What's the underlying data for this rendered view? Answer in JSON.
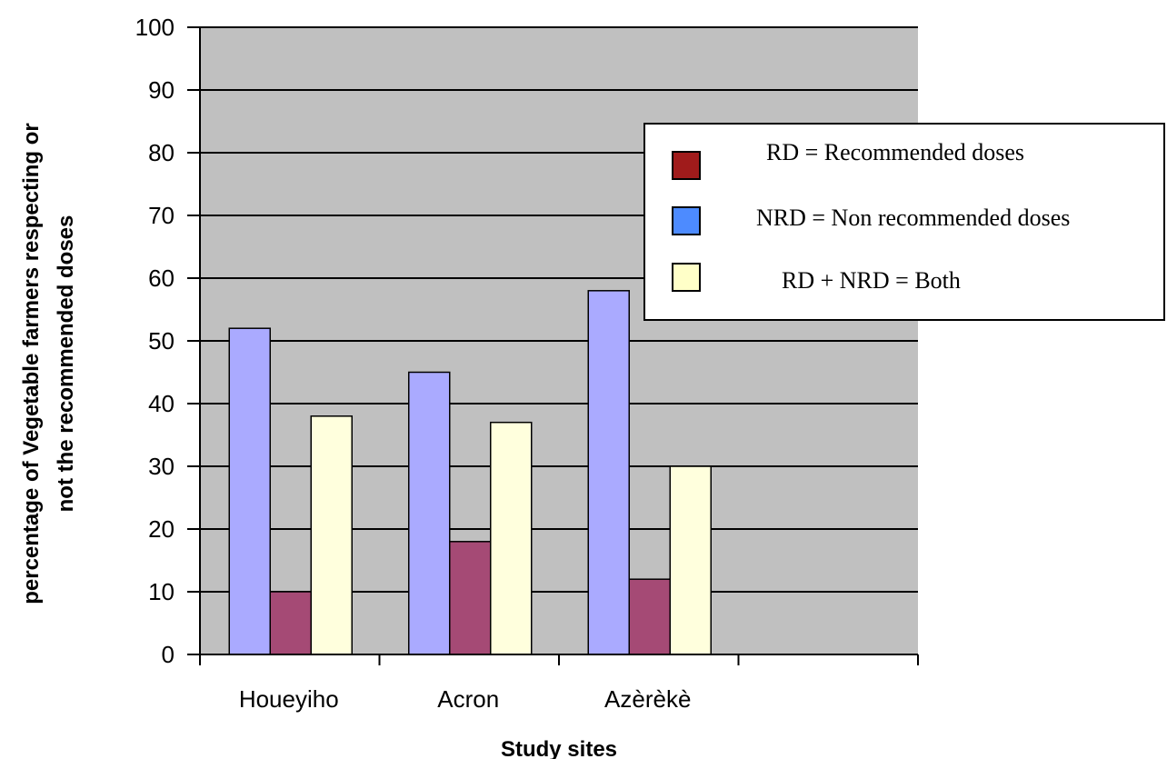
{
  "chart_data": {
    "type": "bar",
    "categories": [
      "Houeyiho",
      "Acron",
      "Azèrèkè",
      ""
    ],
    "series": [
      {
        "key": "NRD",
        "values": [
          52,
          45,
          58,
          null
        ],
        "color": "#aaaaff"
      },
      {
        "key": "RD",
        "values": [
          10,
          18,
          12,
          null
        ],
        "color": "#a54a75"
      },
      {
        "key": "RD + NRD",
        "values": [
          38,
          37,
          30,
          null
        ],
        "color": "#ffffdd"
      }
    ],
    "xlabel": "Study sites",
    "ylabel_line1": "percentage of Vegetable farmers respecting or",
    "ylabel_line2": "not the recommended doses",
    "ylim": [
      0,
      100
    ],
    "yticks": [
      "0",
      "10",
      "20",
      "30",
      "40",
      "50",
      "60",
      "70",
      "80",
      "90",
      "100"
    ],
    "grid": true,
    "plot_background": "#c0c0c0",
    "legend": {
      "position": "top-right",
      "items": [
        {
          "label": "RD = Recommended doses",
          "color": "#a01b1b"
        },
        {
          "label": "NRD = Non recommended doses",
          "color": "#4d8bff"
        },
        {
          "label": "RD + NRD = Both",
          "color": "#ffffc8"
        }
      ]
    }
  }
}
